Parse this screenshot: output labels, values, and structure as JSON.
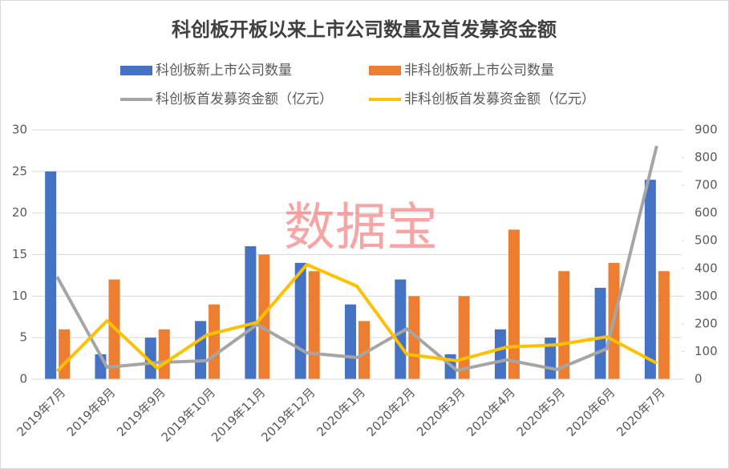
{
  "chart_data": {
    "type": "bar_line",
    "title": "科创板开板以来上市公司数量及首发募资金额",
    "watermark": "数据宝",
    "categories": [
      "2019年7月",
      "2019年8月",
      "2019年9月",
      "2019年10月",
      "2019年11月",
      "2019年12月",
      "2020年1月",
      "2020年2月",
      "2020年3月",
      "2020年4月",
      "2020年5月",
      "2020年6月",
      "2020年7月"
    ],
    "series": [
      {
        "name": "科创板新上市公司数量",
        "kind": "bar",
        "color": "#4472c4",
        "values": [
          25,
          3,
          5,
          7,
          16,
          14,
          9,
          12,
          3,
          6,
          5,
          11,
          24
        ]
      },
      {
        "name": "非科创板新上市公司数量",
        "kind": "bar",
        "color": "#ed7d31",
        "values": [
          6,
          12,
          6,
          9,
          15,
          13,
          7,
          10,
          10,
          18,
          13,
          14,
          13
        ]
      },
      {
        "name": "科创板首发募资金额（亿元）",
        "kind": "line",
        "axis": "y2",
        "color": "#a5a5a5",
        "values": [
          370,
          43,
          60,
          67,
          197,
          95,
          78,
          182,
          32,
          70,
          35,
          110,
          842
        ]
      },
      {
        "name": "非科创板首发募资金额（亿元）",
        "kind": "line",
        "axis": "y2",
        "color": "#ffc000",
        "values": [
          29,
          211,
          40,
          160,
          205,
          414,
          336,
          90,
          67,
          116,
          124,
          153,
          58
        ]
      }
    ],
    "ylim": [
      0,
      30
    ],
    "yticks": [
      0,
      5,
      10,
      15,
      20,
      25,
      30
    ],
    "y2lim": [
      0,
      900
    ],
    "y2ticks": [
      0,
      100,
      200,
      300,
      400,
      500,
      600,
      700,
      800,
      900
    ],
    "grid": true
  }
}
